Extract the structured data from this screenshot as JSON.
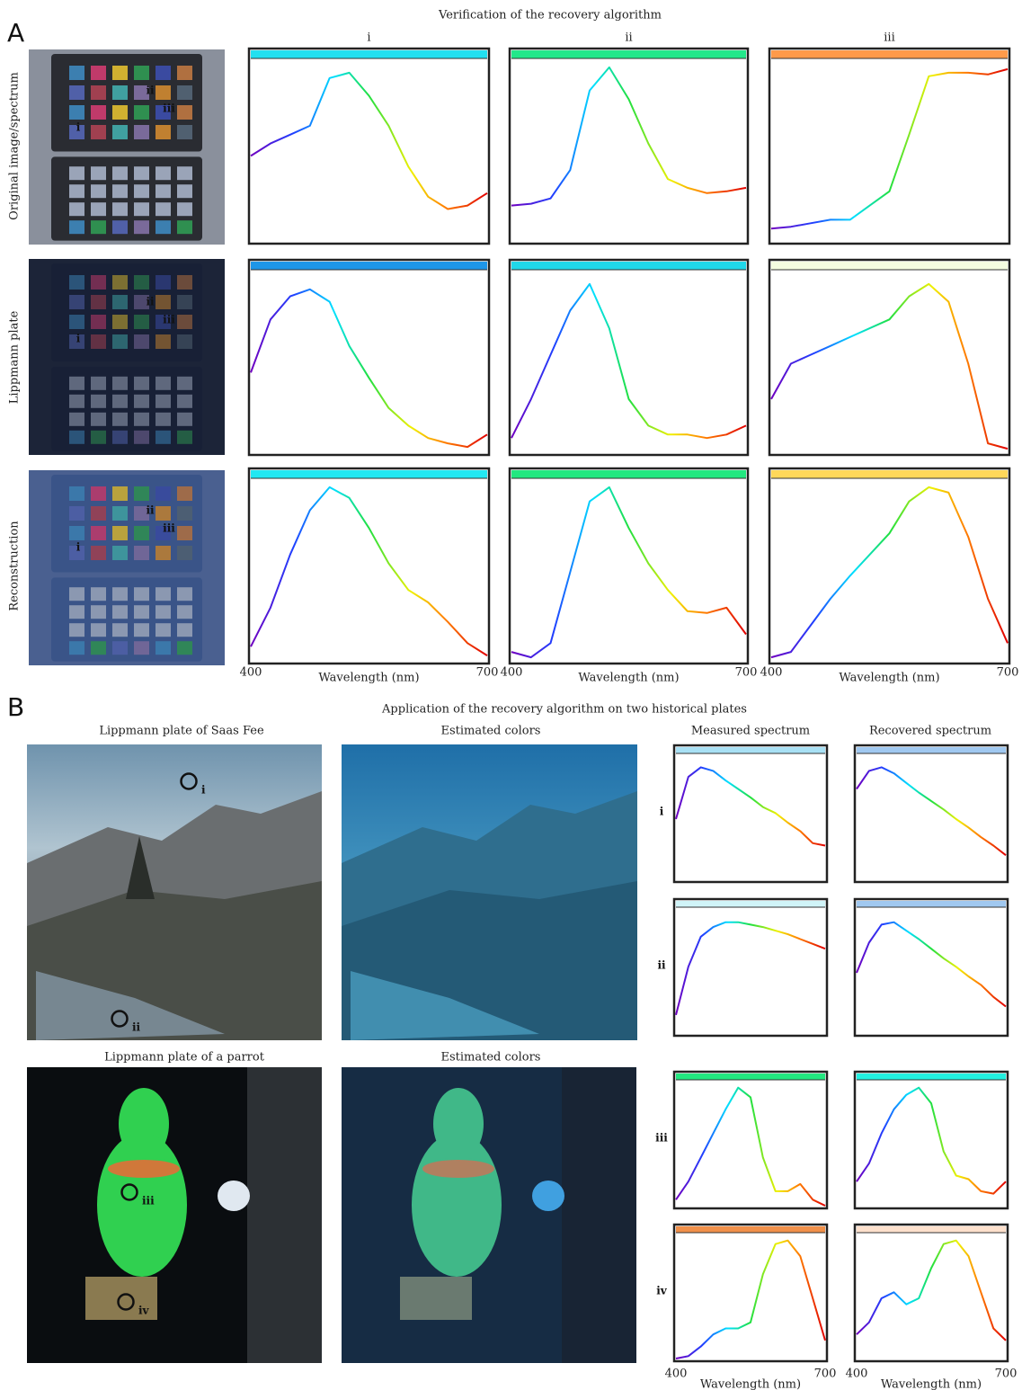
{
  "panel_a": {
    "label": "A",
    "title": "Verification of the recovery algorithm",
    "columns": [
      "i",
      "ii",
      "iii"
    ],
    "photo_markers": [
      "i",
      "ii",
      "iii"
    ],
    "x_label": "Wavelength (nm)",
    "xlim": [
      400,
      700
    ],
    "xticks": [
      400,
      700
    ],
    "ylim": [
      0,
      1
    ],
    "x": [
      400,
      425,
      450,
      475,
      500,
      525,
      550,
      575,
      600,
      625,
      650,
      675,
      700
    ],
    "rows": [
      {
        "label": "Original image/spectrum",
        "plots": [
          {
            "color": "#22e0f0",
            "values": [
              0.48,
              0.55,
              0.6,
              0.65,
              0.92,
              0.95,
              0.82,
              0.65,
              0.42,
              0.25,
              0.18,
              0.2,
              0.27
            ]
          },
          {
            "color": "#22e88a",
            "values": [
              0.2,
              0.21,
              0.24,
              0.4,
              0.85,
              0.98,
              0.8,
              0.55,
              0.35,
              0.3,
              0.27,
              0.28,
              0.3
            ]
          },
          {
            "color": "#ff9a4a",
            "values": [
              0.07,
              0.08,
              0.1,
              0.12,
              0.12,
              0.2,
              0.28,
              0.6,
              0.93,
              0.95,
              0.95,
              0.94,
              0.97
            ]
          }
        ]
      },
      {
        "label": "Lippmann plate",
        "plots": [
          {
            "color": "#1e96e8",
            "values": [
              0.45,
              0.75,
              0.88,
              0.92,
              0.85,
              0.6,
              0.42,
              0.25,
              0.15,
              0.08,
              0.05,
              0.03,
              0.1
            ]
          },
          {
            "color": "#20d8ea",
            "values": [
              0.08,
              0.3,
              0.55,
              0.8,
              0.95,
              0.7,
              0.3,
              0.15,
              0.1,
              0.1,
              0.08,
              0.1,
              0.15
            ]
          },
          {
            "color": "#f4fce0",
            "values": [
              0.3,
              0.5,
              0.55,
              0.6,
              0.65,
              0.7,
              0.75,
              0.88,
              0.95,
              0.85,
              0.5,
              0.05,
              0.02
            ]
          }
        ]
      },
      {
        "label": "Reconstruction",
        "plots": [
          {
            "color": "#22e8f2",
            "values": [
              0.08,
              0.3,
              0.6,
              0.85,
              0.98,
              0.92,
              0.75,
              0.55,
              0.4,
              0.33,
              0.22,
              0.1,
              0.03
            ]
          },
          {
            "color": "#22e880",
            "values": [
              0.05,
              0.02,
              0.1,
              0.5,
              0.9,
              0.98,
              0.75,
              0.55,
              0.4,
              0.28,
              0.27,
              0.3,
              0.15
            ]
          },
          {
            "color": "#ffd85a",
            "values": [
              0.02,
              0.05,
              0.2,
              0.35,
              0.48,
              0.6,
              0.72,
              0.9,
              0.98,
              0.95,
              0.7,
              0.35,
              0.1
            ]
          }
        ]
      }
    ]
  },
  "panel_b": {
    "label": "B",
    "title": "Application of the recovery algorithm on two historical plates",
    "photos": [
      {
        "title": "Lippmann plate of Saas Fee"
      },
      {
        "title": "Estimated colors"
      },
      {
        "title": "Lippmann plate of a parrot"
      },
      {
        "title": "Estimated colors"
      }
    ],
    "spectrum_titles": [
      "Measured spectrum",
      "Recovered spectrum"
    ],
    "x_label": "Wavelength (nm)",
    "xlim": [
      400,
      700
    ],
    "xticks": [
      400,
      700
    ],
    "ylim": [
      0,
      1
    ],
    "x": [
      400,
      425,
      450,
      475,
      500,
      525,
      550,
      575,
      600,
      625,
      650,
      675,
      700
    ],
    "points": [
      {
        "label": "i",
        "measured": {
          "color": "#a8e0f4",
          "values": [
            0.5,
            0.85,
            0.93,
            0.9,
            0.82,
            0.75,
            0.68,
            0.6,
            0.55,
            0.47,
            0.4,
            0.3,
            0.28
          ]
        },
        "recovered": {
          "color": "#a0c8f0",
          "values": [
            0.75,
            0.9,
            0.93,
            0.88,
            0.8,
            0.72,
            0.65,
            0.58,
            0.5,
            0.43,
            0.35,
            0.28,
            0.2
          ]
        }
      },
      {
        "label": "ii",
        "measured": {
          "color": "#d0f4f8",
          "values": [
            0.15,
            0.55,
            0.8,
            0.88,
            0.92,
            0.92,
            0.9,
            0.88,
            0.85,
            0.82,
            0.78,
            0.74,
            0.7
          ]
        },
        "recovered": {
          "color": "#a0c8f0",
          "values": [
            0.5,
            0.75,
            0.9,
            0.92,
            0.85,
            0.78,
            0.7,
            0.62,
            0.55,
            0.47,
            0.4,
            0.3,
            0.22
          ]
        }
      },
      {
        "label": "iii",
        "measured": {
          "color": "#22e880",
          "values": [
            0.05,
            0.2,
            0.4,
            0.6,
            0.8,
            0.98,
            0.9,
            0.4,
            0.12,
            0.12,
            0.18,
            0.05,
            0.0
          ]
        },
        "recovered": {
          "color": "#22f0e0",
          "values": [
            0.2,
            0.35,
            0.6,
            0.8,
            0.92,
            0.98,
            0.85,
            0.45,
            0.25,
            0.22,
            0.12,
            0.1,
            0.2
          ]
        }
      },
      {
        "label": "iv",
        "measured": {
          "color": "#f0904a",
          "values": [
            0.0,
            0.02,
            0.1,
            0.2,
            0.25,
            0.25,
            0.3,
            0.7,
            0.95,
            0.98,
            0.85,
            0.5,
            0.15
          ]
        },
        "recovered": {
          "color": "#fde0cc",
          "values": [
            0.2,
            0.3,
            0.5,
            0.55,
            0.45,
            0.5,
            0.75,
            0.95,
            0.98,
            0.85,
            0.55,
            0.25,
            0.15
          ]
        }
      }
    ]
  }
}
